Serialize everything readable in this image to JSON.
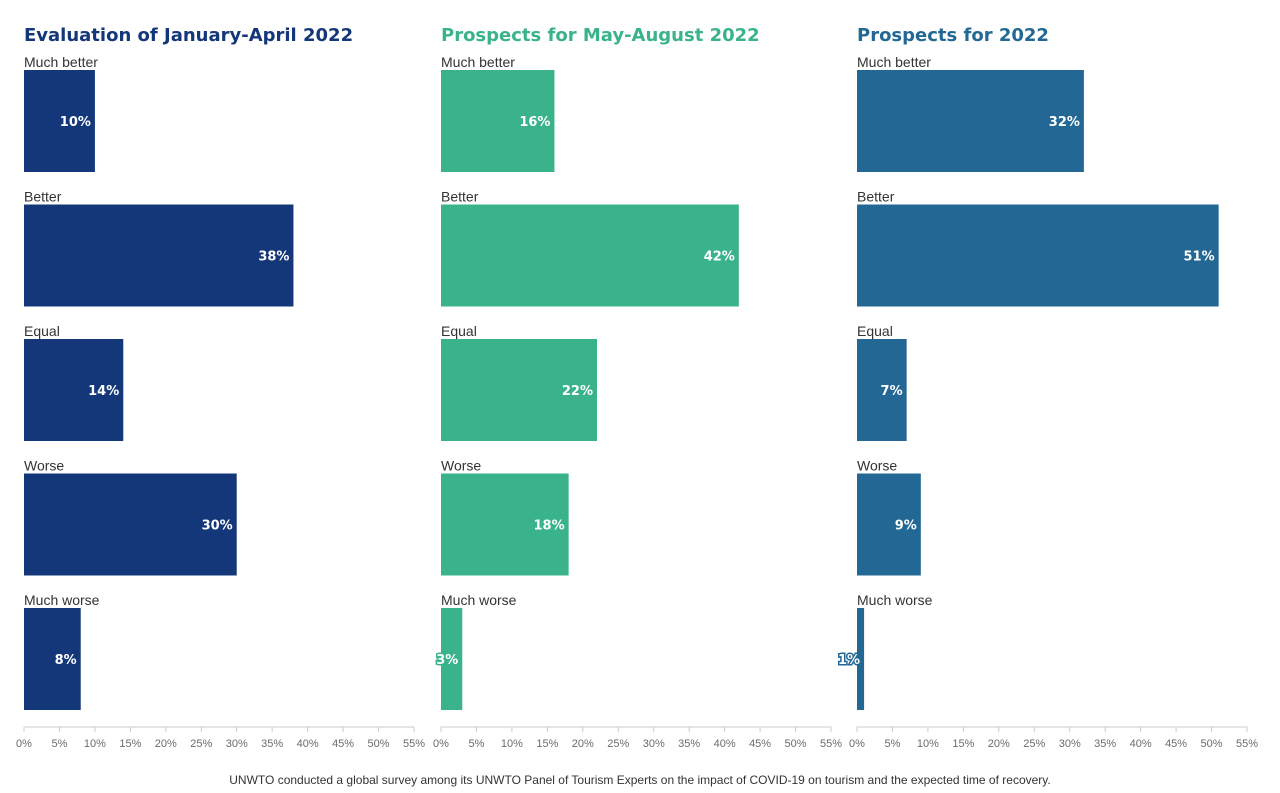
{
  "colors": {
    "navy": "#14377a",
    "green": "#3ab38c",
    "blue": "#236895"
  },
  "chart_data": [
    {
      "type": "bar",
      "orientation": "horizontal",
      "title": "Evaluation of January-April 2022",
      "title_color": "#14377a",
      "bar_color": "#14377a",
      "categories": [
        "Much better",
        "Better",
        "Equal",
        "Worse",
        "Much worse"
      ],
      "values": [
        10,
        38,
        14,
        30,
        8
      ],
      "value_labels": [
        "10%",
        "38%",
        "14%",
        "30%",
        "8%"
      ],
      "xlim": [
        0,
        55
      ],
      "xticks": [
        "0%",
        "5%",
        "10%",
        "15%",
        "20%",
        "25%",
        "30%",
        "35%",
        "40%",
        "45%",
        "50%",
        "55%"
      ],
      "grid": false
    },
    {
      "type": "bar",
      "orientation": "horizontal",
      "title": "Prospects for May-August 2022",
      "title_color": "#3ab38c",
      "bar_color": "#3ab38c",
      "categories": [
        "Much better",
        "Better",
        "Equal",
        "Worse",
        "Much worse"
      ],
      "values": [
        16,
        42,
        22,
        18,
        3
      ],
      "value_labels": [
        "16%",
        "42%",
        "22%",
        "18%",
        "3%"
      ],
      "xlim": [
        0,
        55
      ],
      "xticks": [
        "0%",
        "5%",
        "10%",
        "15%",
        "20%",
        "25%",
        "30%",
        "35%",
        "40%",
        "45%",
        "50%",
        "55%"
      ],
      "grid": false
    },
    {
      "type": "bar",
      "orientation": "horizontal",
      "title": "Prospects for 2022",
      "title_color": "#236895",
      "bar_color": "#236895",
      "categories": [
        "Much better",
        "Better",
        "Equal",
        "Worse",
        "Much worse"
      ],
      "values": [
        32,
        51,
        7,
        9,
        1
      ],
      "value_labels": [
        "32%",
        "51%",
        "7%",
        "9%",
        "1%"
      ],
      "xlim": [
        0,
        55
      ],
      "xticks": [
        "0%",
        "5%",
        "10%",
        "15%",
        "20%",
        "25%",
        "30%",
        "35%",
        "40%",
        "45%",
        "50%",
        "55%"
      ],
      "grid": false
    }
  ],
  "footnote": "UNWTO conducted a global survey among its UNWTO Panel of Tourism Experts on the impact of COVID-19 on tourism and the expected time of recovery."
}
